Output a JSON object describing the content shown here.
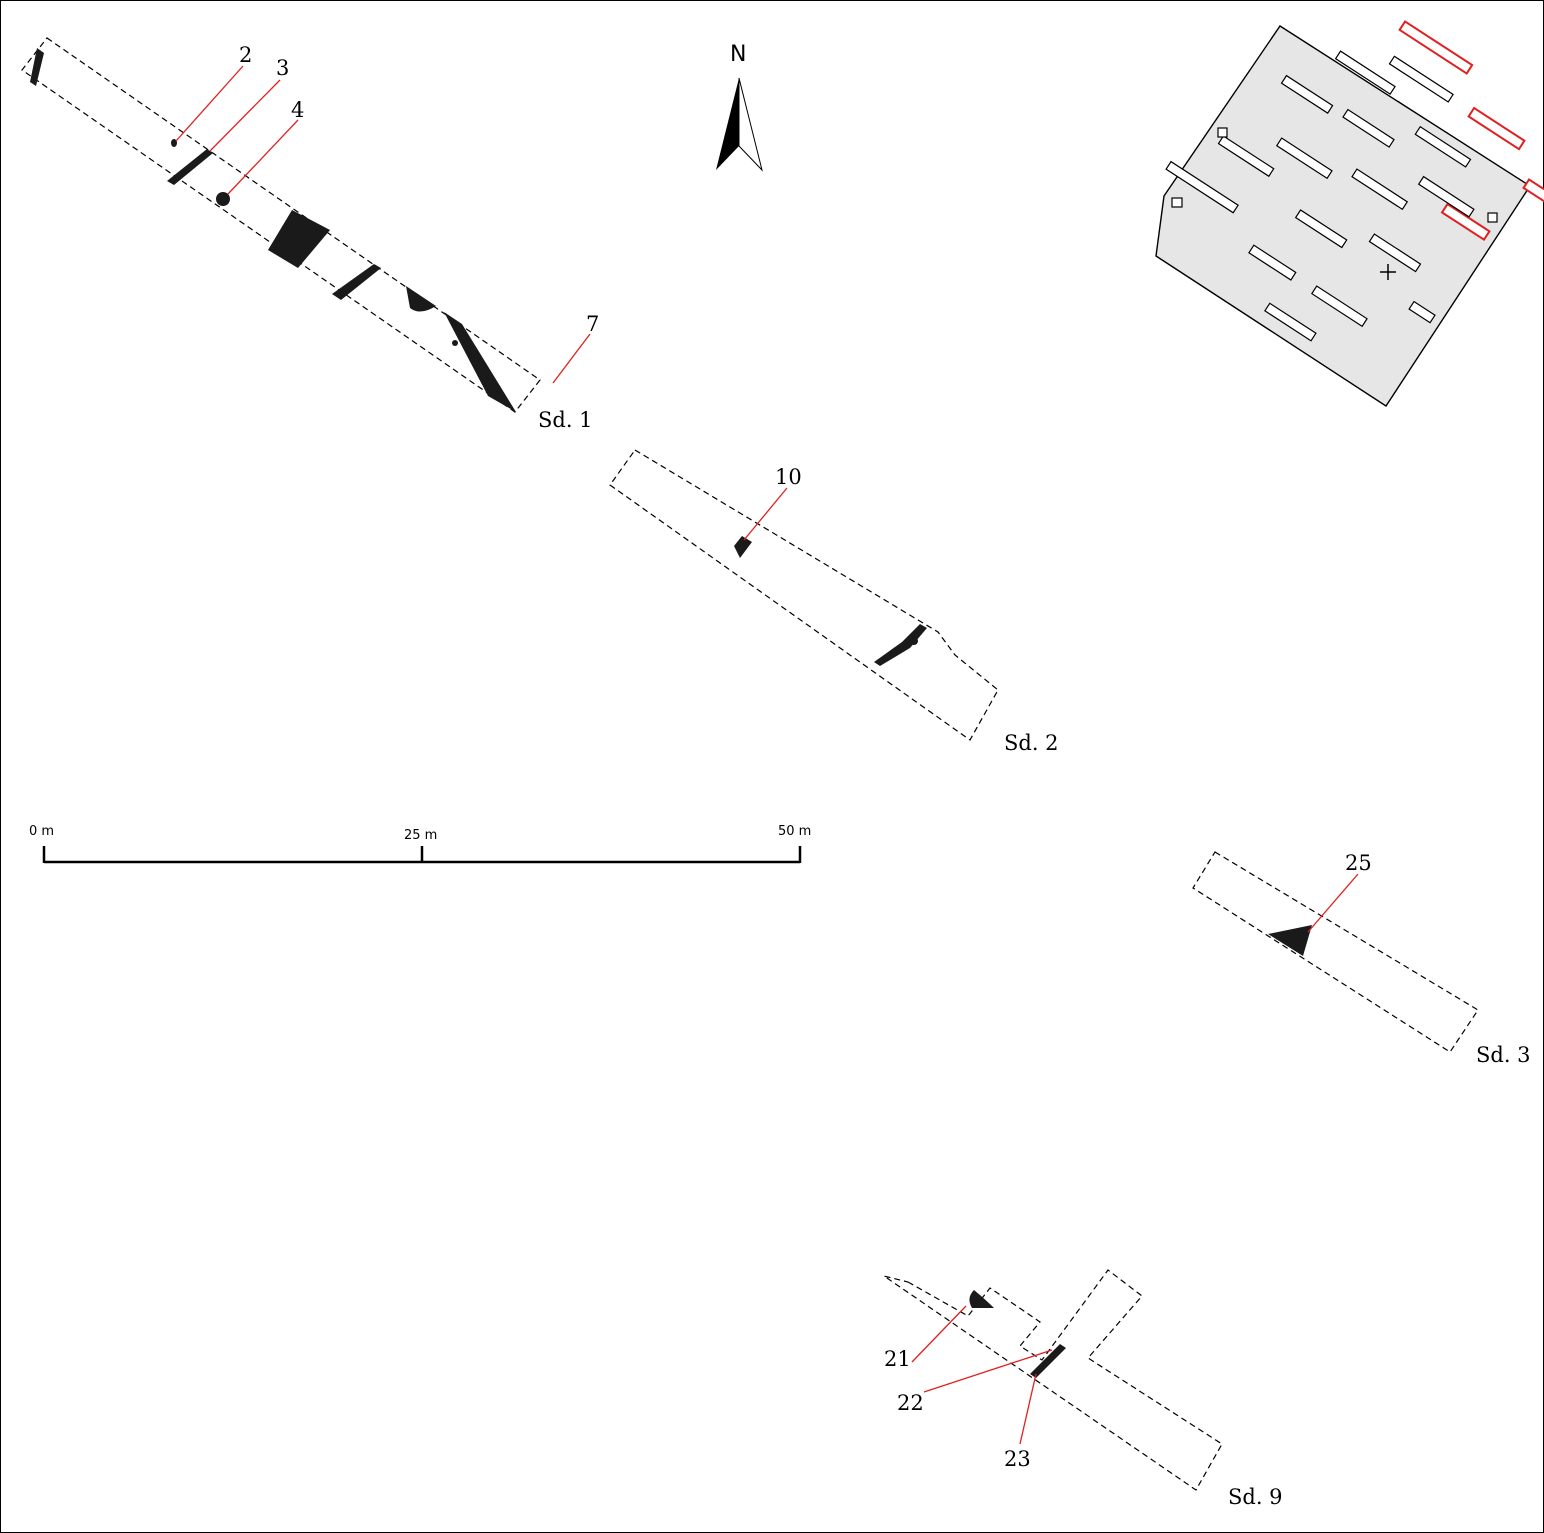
{
  "north": {
    "label": "N"
  },
  "scale_bar": {
    "ticks": [
      "0 m",
      "25 m",
      "50 m"
    ]
  },
  "trenches": [
    {
      "id": "sd1",
      "label": "Sd. 1"
    },
    {
      "id": "sd2",
      "label": "Sd. 2"
    },
    {
      "id": "sd3",
      "label": "Sd. 3"
    },
    {
      "id": "sd9",
      "label": "Sd. 9"
    }
  ],
  "features": [
    {
      "id": "f2",
      "label": "2"
    },
    {
      "id": "f3",
      "label": "3"
    },
    {
      "id": "f4",
      "label": "4"
    },
    {
      "id": "f7",
      "label": "7"
    },
    {
      "id": "f10",
      "label": "10"
    },
    {
      "id": "f25",
      "label": "25"
    },
    {
      "id": "f21",
      "label": "21"
    },
    {
      "id": "f22",
      "label": "22"
    },
    {
      "id": "f23",
      "label": "23"
    }
  ],
  "colors": {
    "leader": "#e02020",
    "feature_fill": "#1a1a1a",
    "inset_background": "#e6e6e6",
    "highlight": "#e02020"
  }
}
